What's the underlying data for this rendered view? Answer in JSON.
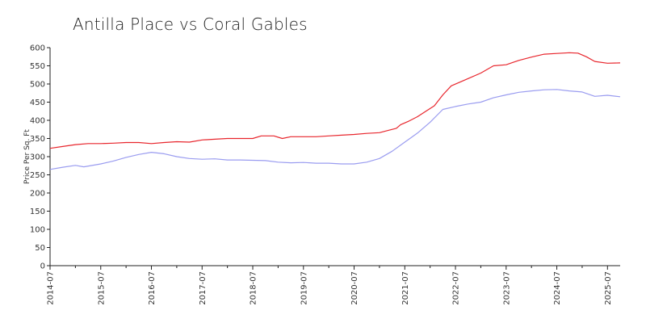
{
  "chart_data": {
    "type": "line",
    "title": "Antilla Place vs Coral Gables",
    "xlabel": "",
    "ylabel": "Price Per Sq. Ft",
    "ylim": [
      0,
      600
    ],
    "y_ticks": [
      0,
      50,
      100,
      150,
      200,
      250,
      300,
      350,
      400,
      450,
      500,
      550,
      600
    ],
    "x_range": [
      "2014-07",
      "2025-10"
    ],
    "x_ticks": [
      "2014-07",
      "2015-07",
      "2016-07",
      "2017-07",
      "2018-07",
      "2019-07",
      "2020-07",
      "2021-07",
      "2022-07",
      "2023-07",
      "2024-07",
      "2025-07"
    ],
    "grid": false,
    "legend": "none",
    "series": [
      {
        "color": "#e8262d",
        "points": [
          [
            "2014-07",
            323
          ],
          [
            "2014-10",
            328
          ],
          [
            "2015-01",
            333
          ],
          [
            "2015-04",
            336
          ],
          [
            "2015-07",
            336
          ],
          [
            "2015-10",
            337
          ],
          [
            "2016-01",
            339
          ],
          [
            "2016-04",
            339
          ],
          [
            "2016-07",
            336
          ],
          [
            "2016-10",
            339
          ],
          [
            "2017-01",
            341
          ],
          [
            "2017-04",
            340
          ],
          [
            "2017-07",
            346
          ],
          [
            "2017-10",
            348
          ],
          [
            "2018-01",
            350
          ],
          [
            "2018-04",
            350
          ],
          [
            "2018-07",
            350
          ],
          [
            "2018-09",
            357
          ],
          [
            "2018-12",
            357
          ],
          [
            "2019-02",
            350
          ],
          [
            "2019-04",
            355
          ],
          [
            "2019-07",
            355
          ],
          [
            "2019-10",
            355
          ],
          [
            "2020-01",
            357
          ],
          [
            "2020-04",
            359
          ],
          [
            "2020-07",
            361
          ],
          [
            "2020-10",
            364
          ],
          [
            "2021-01",
            366
          ],
          [
            "2021-03",
            372
          ],
          [
            "2021-05",
            378
          ],
          [
            "2021-06",
            388
          ],
          [
            "2021-08",
            398
          ],
          [
            "2021-10",
            410
          ],
          [
            "2021-12",
            425
          ],
          [
            "2022-02",
            440
          ],
          [
            "2022-04",
            470
          ],
          [
            "2022-06",
            495
          ],
          [
            "2022-08",
            505
          ],
          [
            "2022-10",
            515
          ],
          [
            "2023-01",
            530
          ],
          [
            "2023-04",
            550
          ],
          [
            "2023-07",
            553
          ],
          [
            "2023-10",
            565
          ],
          [
            "2024-01",
            574
          ],
          [
            "2024-04",
            582
          ],
          [
            "2024-07",
            584
          ],
          [
            "2024-10",
            586
          ],
          [
            "2024-12",
            585
          ],
          [
            "2025-02",
            575
          ],
          [
            "2025-04",
            562
          ],
          [
            "2025-07",
            557
          ],
          [
            "2025-10",
            558
          ]
        ]
      },
      {
        "color": "#9a9cf0",
        "points": [
          [
            "2014-07",
            265
          ],
          [
            "2014-10",
            271
          ],
          [
            "2015-01",
            276
          ],
          [
            "2015-03",
            272
          ],
          [
            "2015-07",
            280
          ],
          [
            "2015-10",
            288
          ],
          [
            "2016-01",
            298
          ],
          [
            "2016-04",
            306
          ],
          [
            "2016-07",
            312
          ],
          [
            "2016-10",
            308
          ],
          [
            "2017-01",
            300
          ],
          [
            "2017-04",
            295
          ],
          [
            "2017-07",
            293
          ],
          [
            "2017-10",
            294
          ],
          [
            "2018-01",
            291
          ],
          [
            "2018-04",
            291
          ],
          [
            "2018-07",
            290
          ],
          [
            "2018-10",
            289
          ],
          [
            "2019-01",
            285
          ],
          [
            "2019-04",
            283
          ],
          [
            "2019-07",
            284
          ],
          [
            "2019-10",
            282
          ],
          [
            "2020-01",
            282
          ],
          [
            "2020-04",
            280
          ],
          [
            "2020-07",
            280
          ],
          [
            "2020-10",
            285
          ],
          [
            "2021-01",
            295
          ],
          [
            "2021-04",
            315
          ],
          [
            "2021-07",
            340
          ],
          [
            "2021-10",
            365
          ],
          [
            "2022-01",
            395
          ],
          [
            "2022-04",
            430
          ],
          [
            "2022-07",
            438
          ],
          [
            "2022-10",
            445
          ],
          [
            "2023-01",
            450
          ],
          [
            "2023-04",
            462
          ],
          [
            "2023-07",
            470
          ],
          [
            "2023-10",
            477
          ],
          [
            "2024-01",
            481
          ],
          [
            "2024-04",
            484
          ],
          [
            "2024-07",
            485
          ],
          [
            "2024-10",
            481
          ],
          [
            "2025-01",
            478
          ],
          [
            "2025-04",
            466
          ],
          [
            "2025-07",
            469
          ],
          [
            "2025-10",
            465
          ]
        ]
      }
    ]
  }
}
